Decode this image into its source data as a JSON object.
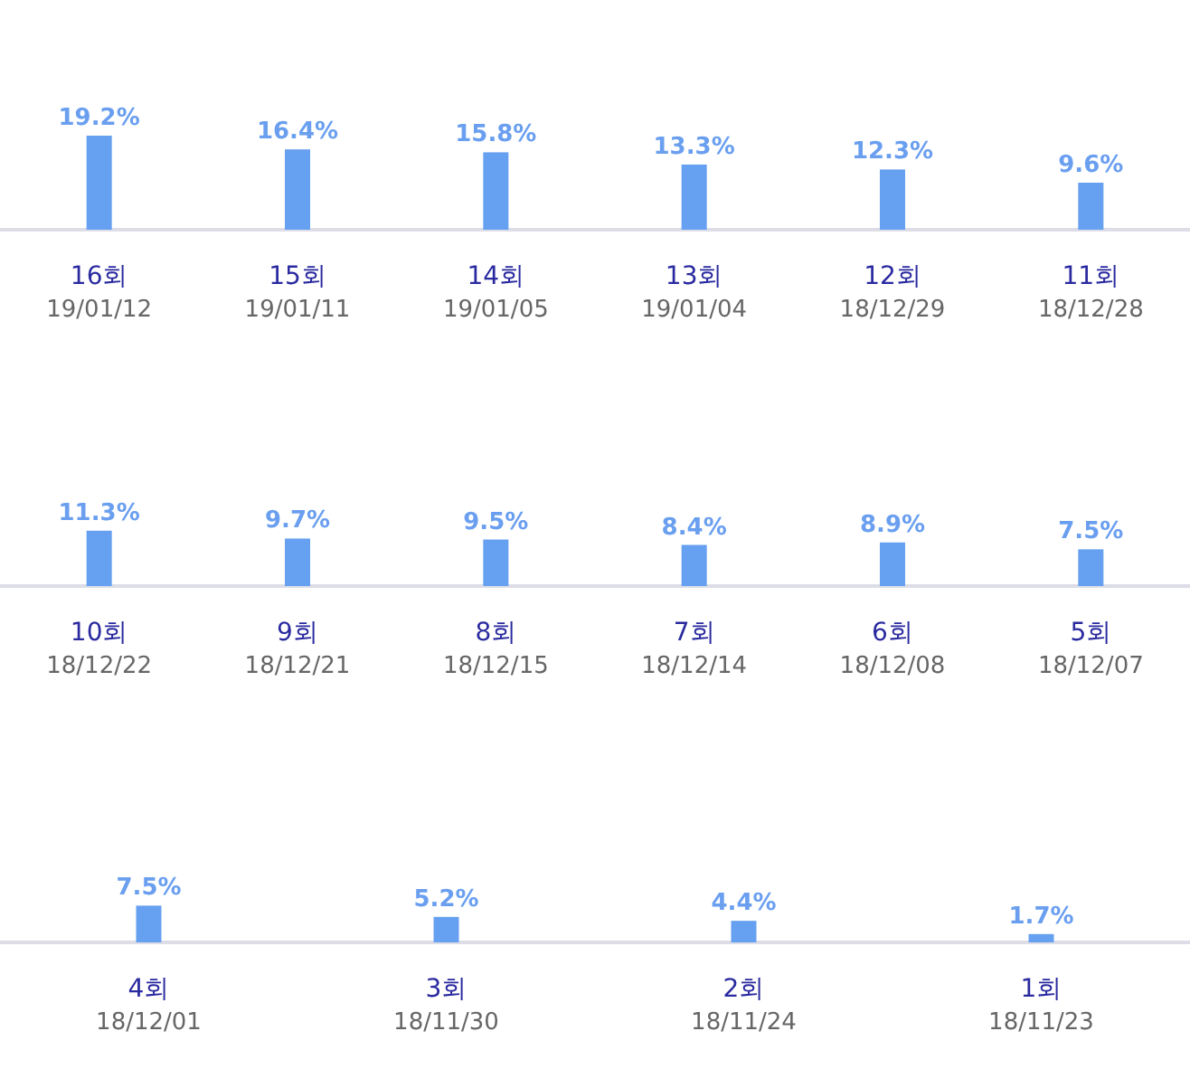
{
  "chart_data": [
    {
      "type": "bar",
      "categories": [
        "16회\n19/01/12",
        "15회\n19/01/11",
        "14회\n19/01/05",
        "13회\n19/01/04",
        "12회\n18/12/29",
        "11회\n18/12/28"
      ],
      "values": [
        19.2,
        16.4,
        15.8,
        13.3,
        12.3,
        9.6
      ],
      "value_labels": [
        "19.2%",
        "16.4%",
        "15.8%",
        "13.3%",
        "12.3%",
        "9.6%"
      ],
      "color": "#66a0f0"
    },
    {
      "type": "bar",
      "categories": [
        "10회\n18/12/22",
        "9회\n18/12/21",
        "8회\n18/12/15",
        "7회\n18/12/14",
        "6회\n18/12/08",
        "5회\n18/12/07"
      ],
      "values": [
        11.3,
        9.7,
        9.5,
        8.4,
        8.9,
        7.5
      ],
      "value_labels": [
        "11.3%",
        "9.7%",
        "9.5%",
        "8.4%",
        "8.9%",
        "7.5%"
      ],
      "color": "#66a0f0"
    },
    {
      "type": "bar",
      "categories": [
        "4회\n18/12/01",
        "3회\n18/11/30",
        "2회\n18/11/24",
        "1회\n18/11/23"
      ],
      "values": [
        7.5,
        5.2,
        4.4,
        1.7
      ],
      "value_labels": [
        "7.5%",
        "5.2%",
        "4.4%",
        "1.7%"
      ],
      "color": "#66a0f0"
    }
  ]
}
